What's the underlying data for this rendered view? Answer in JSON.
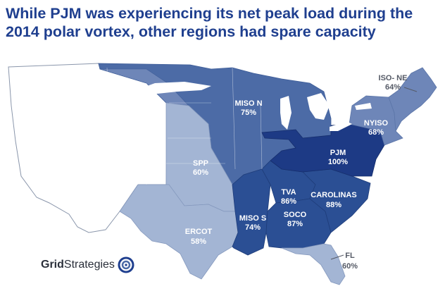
{
  "title": {
    "line1": "While PJM was experiencing its net peak load during the",
    "line2": "2014 polar vortex, other regions had spare capacity"
  },
  "colors": {
    "title": "#1f3f8f",
    "pjm": "#1d3a85",
    "dark_regions": "#2b4f94",
    "miso_n": "#4c6ba6",
    "nyiso_isone": "#6e86b8",
    "spp_ercot_fl": "#a3b5d4",
    "other": "#ffffff",
    "outline": "#8a96ab"
  },
  "regions": [
    {
      "id": "isone",
      "name": "ISO- NE",
      "value": "64%"
    },
    {
      "id": "nyiso",
      "name": "NYISO",
      "value": "68%"
    },
    {
      "id": "pjm",
      "name": "PJM",
      "value": "100%"
    },
    {
      "id": "carolinas",
      "name": "CAROLINAS",
      "value": "88%"
    },
    {
      "id": "tva",
      "name": "TVA",
      "value": "86%"
    },
    {
      "id": "soco",
      "name": "SOCO",
      "value": "87%"
    },
    {
      "id": "miso_s",
      "name": "MISO S",
      "value": "74%"
    },
    {
      "id": "miso_n",
      "name": "MISO N",
      "value": "75%"
    },
    {
      "id": "spp",
      "name": "SPP",
      "value": "60%"
    },
    {
      "id": "ercot",
      "name": "ERCOT",
      "value": "58%"
    },
    {
      "id": "fl",
      "name": "FL",
      "value": "60%"
    }
  ],
  "logo": {
    "part1": "Grid",
    "part2": "Strategies"
  }
}
